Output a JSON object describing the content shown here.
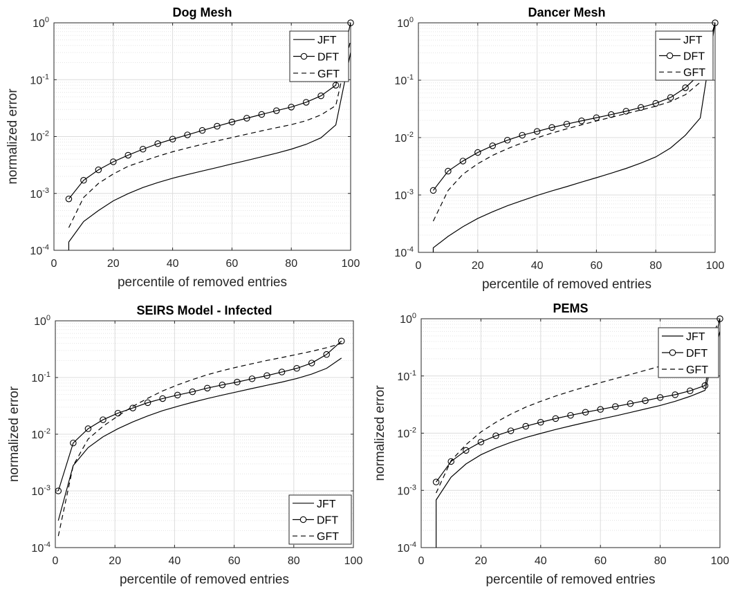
{
  "chart_data": [
    {
      "type": "line",
      "title": "Dog Mesh",
      "xlabel": "percentile of removed entries",
      "ylabel": "normalized error",
      "xlim": [
        0,
        100
      ],
      "ylim": [
        0.0001,
        1
      ],
      "yscale": "log",
      "grid": true,
      "legend_position": "top-right",
      "xticks": [
        "0",
        "20",
        "40",
        "60",
        "80",
        "100"
      ],
      "series": [
        {
          "name": "JFT",
          "style": "solid",
          "marker": "none",
          "x": [
            5,
            5,
            10,
            15,
            20,
            25,
            30,
            35,
            40,
            45,
            50,
            55,
            60,
            65,
            70,
            75,
            80,
            85,
            90,
            95,
            100
          ],
          "y": [
            0.0001,
            0.00014,
            0.00032,
            0.0005,
            0.00074,
            0.00099,
            0.00127,
            0.00155,
            0.00185,
            0.00215,
            0.00248,
            0.00285,
            0.0033,
            0.0038,
            0.0044,
            0.0051,
            0.006,
            0.0073,
            0.0095,
            0.016,
            0.3
          ]
        },
        {
          "name": "DFT",
          "style": "solid",
          "marker": "circle",
          "x": [
            5,
            10,
            15,
            20,
            25,
            30,
            35,
            40,
            45,
            50,
            55,
            60,
            65,
            70,
            75,
            80,
            85,
            90,
            95,
            100
          ],
          "y": [
            0.0008,
            0.0017,
            0.0026,
            0.0036,
            0.0047,
            0.006,
            0.0075,
            0.009,
            0.0107,
            0.0128,
            0.0152,
            0.018,
            0.021,
            0.0245,
            0.0285,
            0.033,
            0.04,
            0.052,
            0.08,
            1.0
          ]
        },
        {
          "name": "GFT",
          "style": "dashed",
          "marker": "none",
          "x": [
            5,
            10,
            15,
            20,
            25,
            30,
            35,
            40,
            45,
            50,
            55,
            60,
            65,
            70,
            75,
            80,
            85,
            90,
            95,
            100
          ],
          "y": [
            0.00025,
            0.00085,
            0.0015,
            0.0022,
            0.003,
            0.0037,
            0.0045,
            0.0054,
            0.0063,
            0.0073,
            0.0084,
            0.0096,
            0.011,
            0.0126,
            0.0143,
            0.0162,
            0.019,
            0.024,
            0.035,
            0.5
          ]
        }
      ]
    },
    {
      "type": "line",
      "title": "Dancer Mesh",
      "xlabel": "percentile of removed entries",
      "ylabel": "",
      "xlim": [
        0,
        100
      ],
      "ylim": [
        0.0001,
        1
      ],
      "yscale": "log",
      "grid": true,
      "legend_position": "top-right",
      "xticks": [
        "0",
        "20",
        "40",
        "60",
        "80",
        "100"
      ],
      "series": [
        {
          "name": "JFT",
          "style": "solid",
          "marker": "none",
          "x": [
            5,
            5,
            10,
            15,
            20,
            25,
            30,
            35,
            40,
            45,
            50,
            55,
            60,
            65,
            70,
            75,
            80,
            85,
            90,
            95,
            100
          ],
          "y": [
            0.0001,
            0.00012,
            0.00019,
            0.00028,
            0.00039,
            0.00051,
            0.00065,
            0.0008,
            0.00098,
            0.00118,
            0.0014,
            0.00168,
            0.002,
            0.0024,
            0.0029,
            0.0036,
            0.0046,
            0.0066,
            0.011,
            0.022,
            1.0
          ]
        },
        {
          "name": "DFT",
          "style": "solid",
          "marker": "circle",
          "x": [
            5,
            10,
            15,
            20,
            25,
            30,
            35,
            40,
            45,
            50,
            55,
            60,
            65,
            70,
            75,
            80,
            85,
            90,
            95,
            100
          ],
          "y": [
            0.0012,
            0.0026,
            0.0039,
            0.0055,
            0.0072,
            0.009,
            0.011,
            0.0128,
            0.015,
            0.0172,
            0.0196,
            0.0222,
            0.0252,
            0.0288,
            0.0335,
            0.0395,
            0.05,
            0.074,
            0.13,
            1.0
          ]
        },
        {
          "name": "GFT",
          "style": "dashed",
          "marker": "none",
          "x": [
            5,
            10,
            15,
            20,
            25,
            30,
            35,
            40,
            45,
            50,
            55,
            60,
            65,
            70,
            75,
            80,
            85,
            90,
            95,
            100
          ],
          "y": [
            0.00035,
            0.0012,
            0.0023,
            0.0035,
            0.0049,
            0.0064,
            0.0081,
            0.0099,
            0.012,
            0.0142,
            0.0167,
            0.0195,
            0.0226,
            0.0262,
            0.0303,
            0.0352,
            0.0425,
            0.056,
            0.092,
            1.0
          ]
        }
      ]
    },
    {
      "type": "line",
      "title": "SEIRS Model - Infected",
      "xlabel": "percentile of removed entries",
      "ylabel": "normalized error",
      "xlim": [
        0,
        100
      ],
      "ylim": [
        0.0001,
        1
      ],
      "yscale": "log",
      "grid": true,
      "legend_position": "bottom-right",
      "xticks": [
        "0",
        "20",
        "40",
        "60",
        "80",
        "100"
      ],
      "series": [
        {
          "name": "JFT",
          "style": "solid",
          "marker": "none",
          "x": [
            1,
            6,
            11,
            16,
            21,
            26,
            31,
            36,
            41,
            46,
            51,
            56,
            61,
            66,
            71,
            76,
            81,
            86,
            91,
            96
          ],
          "y": [
            0.0003,
            0.0028,
            0.0058,
            0.009,
            0.0125,
            0.0165,
            0.021,
            0.026,
            0.031,
            0.0365,
            0.0425,
            0.049,
            0.056,
            0.064,
            0.073,
            0.083,
            0.096,
            0.115,
            0.145,
            0.22
          ]
        },
        {
          "name": "DFT",
          "style": "solid",
          "marker": "circle",
          "x": [
            1,
            6,
            11,
            16,
            21,
            26,
            31,
            36,
            41,
            46,
            51,
            56,
            61,
            66,
            71,
            76,
            81,
            86,
            91,
            96
          ],
          "y": [
            0.001,
            0.007,
            0.0125,
            0.018,
            0.0235,
            0.029,
            0.036,
            0.0425,
            0.049,
            0.056,
            0.065,
            0.074,
            0.083,
            0.095,
            0.108,
            0.125,
            0.145,
            0.18,
            0.255,
            0.44
          ]
        },
        {
          "name": "GFT",
          "style": "dashed",
          "marker": "none",
          "x": [
            1,
            6,
            11,
            16,
            21,
            26,
            31,
            36,
            41,
            46,
            51,
            56,
            61,
            66,
            71,
            76,
            81,
            86,
            91,
            96
          ],
          "y": [
            0.00016,
            0.0028,
            0.0082,
            0.0138,
            0.021,
            0.031,
            0.043,
            0.058,
            0.074,
            0.092,
            0.112,
            0.132,
            0.153,
            0.175,
            0.2,
            0.225,
            0.255,
            0.29,
            0.335,
            0.4
          ]
        }
      ]
    },
    {
      "type": "line",
      "title": "PEMS",
      "xlabel": "percentile of removed entries",
      "ylabel": "normalized error",
      "xlim": [
        0,
        100
      ],
      "ylim": [
        0.0001,
        1
      ],
      "yscale": "log",
      "grid": true,
      "legend_position": "top-right",
      "xticks": [
        "0",
        "20",
        "40",
        "60",
        "80",
        "100"
      ],
      "series": [
        {
          "name": "JFT",
          "style": "solid",
          "marker": "none",
          "x": [
            5,
            5,
            10,
            15,
            20,
            25,
            30,
            35,
            40,
            45,
            50,
            55,
            60,
            65,
            70,
            75,
            80,
            85,
            90,
            95,
            100
          ],
          "y": [
            0.0001,
            0.00068,
            0.0017,
            0.0029,
            0.0042,
            0.0055,
            0.0069,
            0.0084,
            0.0099,
            0.0116,
            0.0134,
            0.0154,
            0.0176,
            0.02,
            0.023,
            0.0265,
            0.0305,
            0.036,
            0.044,
            0.056,
            0.6
          ]
        },
        {
          "name": "DFT",
          "style": "solid",
          "marker": "circle",
          "x": [
            5,
            10,
            15,
            20,
            25,
            30,
            35,
            40,
            45,
            50,
            55,
            60,
            65,
            70,
            75,
            80,
            85,
            90,
            95,
            100
          ],
          "y": [
            0.0014,
            0.0032,
            0.005,
            0.007,
            0.009,
            0.011,
            0.0132,
            0.0155,
            0.018,
            0.0205,
            0.0232,
            0.026,
            0.0292,
            0.0328,
            0.037,
            0.042,
            0.047,
            0.055,
            0.068,
            1.0
          ]
        },
        {
          "name": "GFT",
          "style": "dashed",
          "marker": "none",
          "x": [
            5,
            10,
            15,
            20,
            25,
            30,
            35,
            40,
            45,
            50,
            55,
            60,
            65,
            70,
            75,
            80,
            85,
            90,
            95,
            100
          ],
          "y": [
            0.0009,
            0.0033,
            0.0063,
            0.0105,
            0.0155,
            0.0215,
            0.0285,
            0.036,
            0.0445,
            0.054,
            0.0645,
            0.0765,
            0.09,
            0.106,
            0.125,
            0.148,
            0.175,
            0.21,
            0.26,
            1.0
          ]
        }
      ]
    }
  ]
}
